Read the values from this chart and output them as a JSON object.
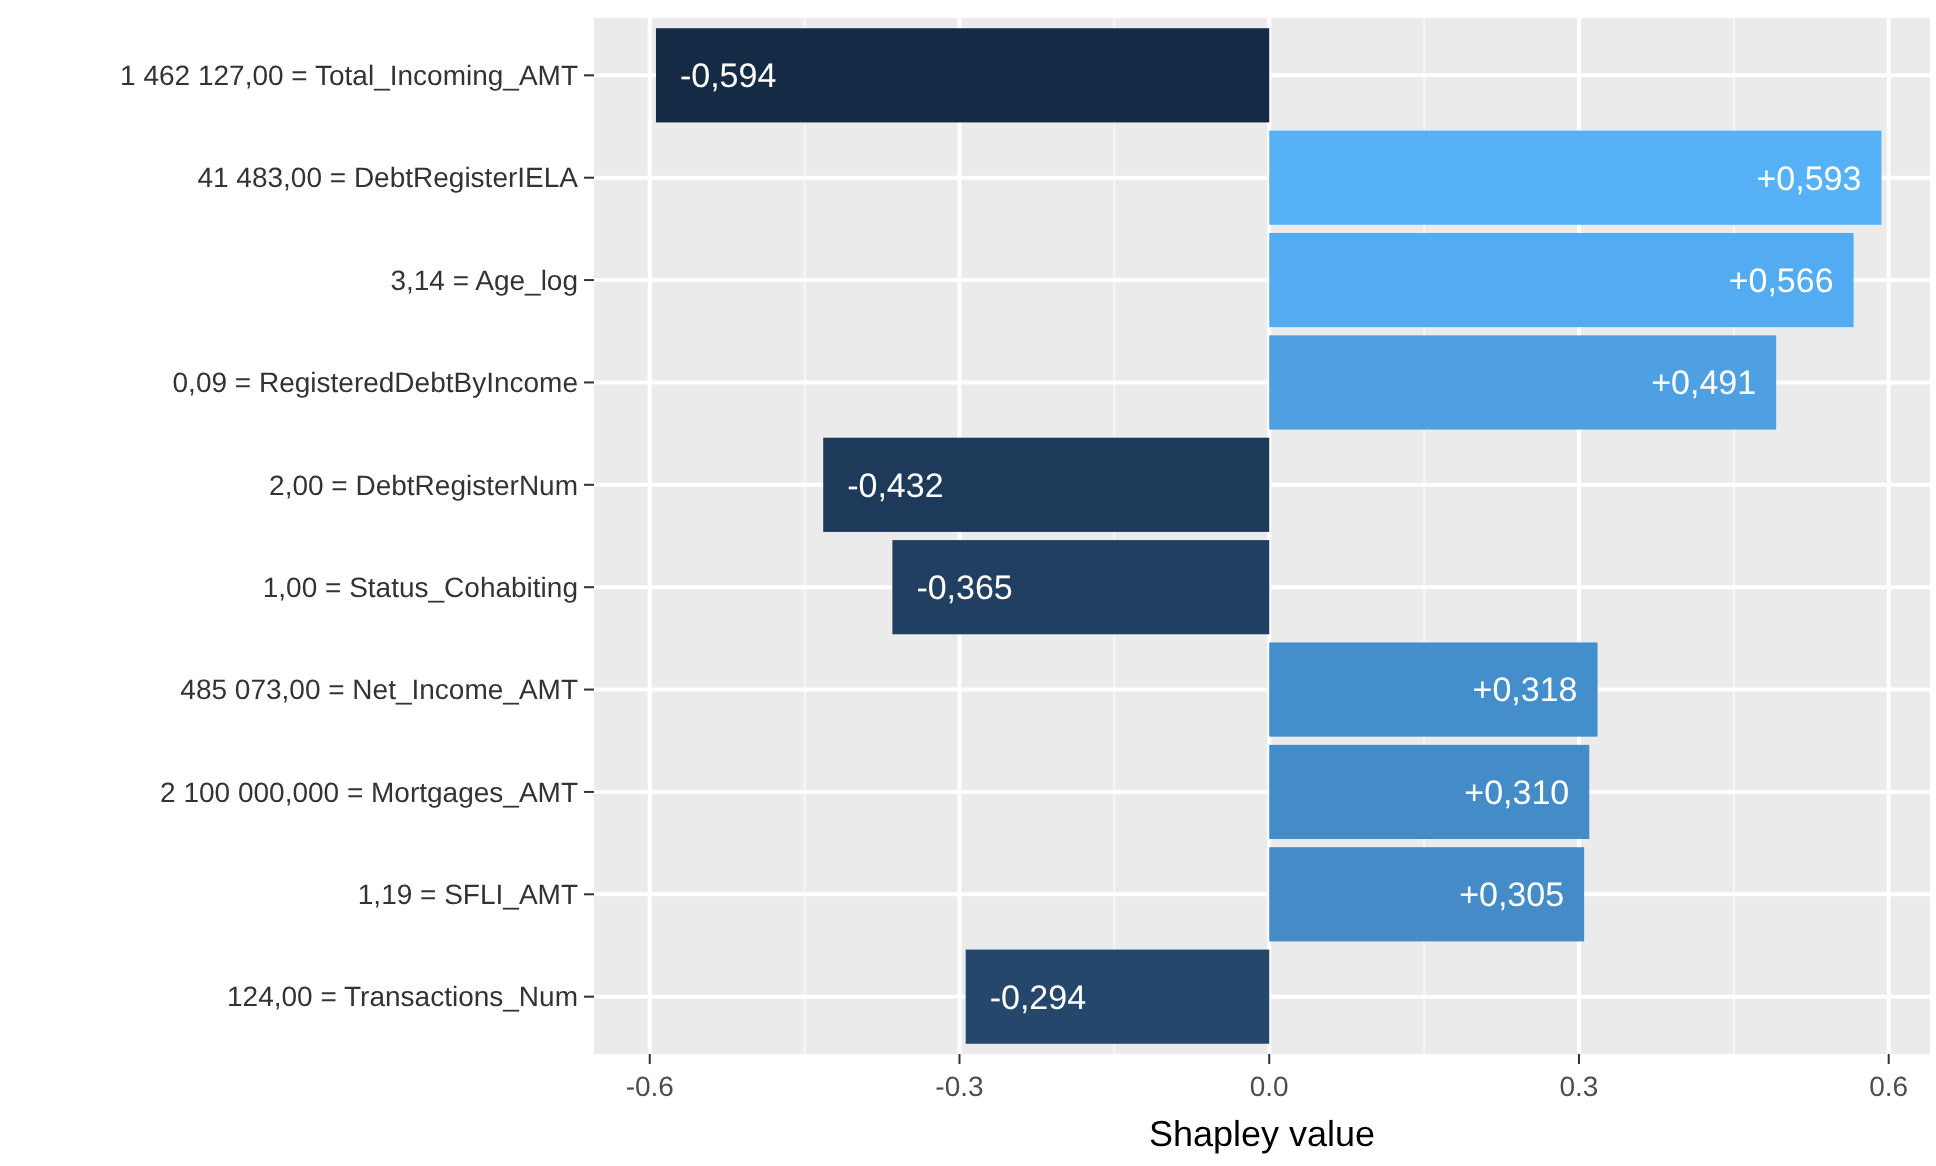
{
  "chart_data": {
    "type": "bar",
    "orientation": "horizontal",
    "xlabel": "Shapley value",
    "categories": [
      "1 462 127,00 = Total_Incoming_AMT",
      "41 483,00 = DebtRegisterIELA",
      "3,14 = Age_log",
      "0,09 = RegisteredDebtByIncome",
      "2,00 = DebtRegisterNum",
      "1,00 = Status_Cohabiting",
      "485 073,00 = Net_Income_AMT",
      "2 100 000,000 = Mortgages_AMT",
      "1,19 = SFLI_AMT",
      "124,00 = Transactions_Num"
    ],
    "values": [
      -0.594,
      0.593,
      0.566,
      0.491,
      -0.432,
      -0.365,
      0.318,
      0.31,
      0.305,
      -0.294
    ],
    "colors": [
      "#152b45",
      "#56b1f7",
      "#53acf2",
      "#4fa0e3",
      "#1e3a5a",
      "#213f61",
      "#448ecb",
      "#448cc8",
      "#448bc7",
      "#24476b"
    ],
    "value_labels": [
      "-0,594",
      "+0,593",
      "+0,566",
      "+0,491",
      "-0,432",
      "-0,365",
      "+0,318",
      "+0,310",
      "+0,305",
      "-0,294"
    ],
    "xlim": [
      -0.654,
      0.64
    ],
    "xticks": [
      {
        "value": -0.6,
        "label": "-0.6"
      },
      {
        "value": -0.3,
        "label": "-0.3"
      },
      {
        "value": 0,
        "label": "0.0"
      },
      {
        "value": 0.3,
        "label": "0.3"
      },
      {
        "value": 0.6,
        "label": "0.6"
      }
    ],
    "grid": true
  }
}
